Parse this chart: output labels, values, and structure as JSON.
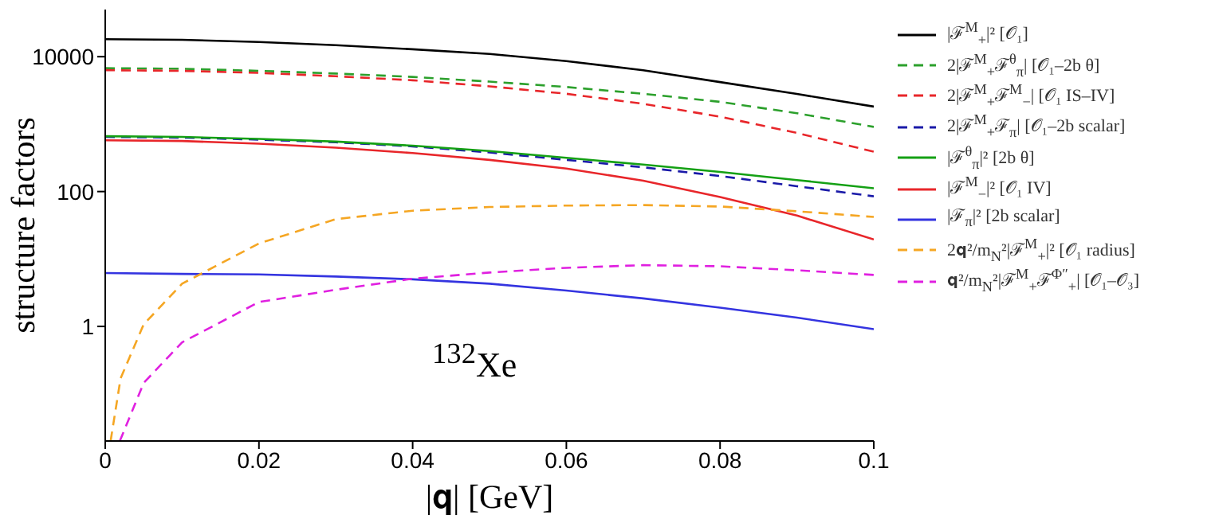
{
  "chart_data": {
    "type": "line",
    "xlabel": "|𝐪| [GeV]",
    "ylabel": "structure factors",
    "annotations": [
      "$^{132}$Xe"
    ],
    "log": "y",
    "legend": "right",
    "xlim": [
      0,
      0.1
    ],
    "xticks": [
      0,
      0.02,
      0.04,
      0.06,
      0.08,
      0.1
    ],
    "ylim": [
      0.02,
      50000
    ],
    "yticks": [
      1,
      100,
      10000
    ],
    "x": [
      0,
      0.01,
      0.02,
      0.03,
      0.04,
      0.05,
      0.06,
      0.07,
      0.08,
      0.09,
      0.1
    ],
    "series": [
      {
        "name": "|ℱ$^{M}$$_{+}$|² [𝒪₁]",
        "color": "#000000",
        "line_style": "solid",
        "values": [
          18200,
          17800,
          16500,
          14800,
          12900,
          11000,
          8600,
          6300,
          4200,
          2800,
          1820
        ]
      },
      {
        "name": "2|ℱ$^{M}$$_{+}$ℱ$^{θ}$$_{π}$| [𝒪₁–2b θ]",
        "color": "#2ca02c",
        "line_style": "dashed",
        "values": [
          6760,
          6610,
          6170,
          5620,
          5010,
          4270,
          3550,
          2820,
          2140,
          1450,
          910
        ]
      },
      {
        "name": "2|ℱ$^{M}$$_{+}$ℱ$^{M}$$_{−}$| [𝒪₁ IS–IV]",
        "color": "#e8262a",
        "line_style": "dashed",
        "values": [
          6310,
          6170,
          5750,
          5130,
          4470,
          3630,
          2820,
          2000,
          1290,
          740,
          390
        ]
      },
      {
        "name": "2|ℱ$^{M}$$_{+}$ℱ$_{π}$| [𝒪₁–2b scalar]",
        "color": "#1a1aa8",
        "line_style": "dashed",
        "values": [
          646,
          631,
          589,
          537,
          468,
          380,
          295,
          229,
          170,
          120,
          85
        ]
      },
      {
        "name": "|ℱ$^{θ}$$_{π}$|² [2b θ]",
        "color": "#14a014",
        "line_style": "solid",
        "values": [
          661,
          646,
          603,
          550,
          479,
          398,
          316,
          251,
          195,
          148,
          112
        ]
      },
      {
        "name": "|ℱ$^{M}$$_{−}$|² [𝒪₁ IV]",
        "color": "#e8262a",
        "line_style": "solid",
        "values": [
          575,
          562,
          513,
          447,
          372,
          295,
          219,
          145,
          83,
          44,
          19.5
        ]
      },
      {
        "name": "|ℱ$_{π}$|² [2b scalar]",
        "color": "#3434e0",
        "line_style": "solid",
        "values": [
          6.2,
          6.0,
          5.9,
          5.5,
          5.0,
          4.3,
          3.4,
          2.6,
          1.9,
          1.35,
          0.91
        ]
      },
      {
        "name": "2𝐪²/m$_{N}$²|ℱ$^{M}$$_{+}$|² [𝒪₁ radius]",
        "color": "#f5a623",
        "line_style": "dashed",
        "x": [
          0.0007,
          0.002,
          0.005,
          0.01,
          0.02,
          0.03,
          0.04,
          0.05,
          0.06,
          0.07,
          0.08,
          0.09,
          0.1
        ],
        "values": [
          0.02,
          0.17,
          1.07,
          4.3,
          17,
          39,
          52,
          59,
          62,
          63,
          60,
          51,
          42
        ]
      },
      {
        "name": "𝐪²/m$_{N}$²|ℱ$^{M}$$_{+}$ℱ$^{Φ″}$$_{+}$| [𝒪₁–𝒪₃]",
        "color": "#e020e0",
        "line_style": "dashed",
        "x": [
          0.0019,
          0.005,
          0.01,
          0.02,
          0.03,
          0.04,
          0.05,
          0.06,
          0.07,
          0.08,
          0.09,
          0.1
        ],
        "values": [
          0.02,
          0.145,
          0.58,
          2.3,
          3.5,
          5.1,
          6.3,
          7.4,
          8.1,
          7.8,
          6.8,
          5.8
        ]
      }
    ]
  }
}
